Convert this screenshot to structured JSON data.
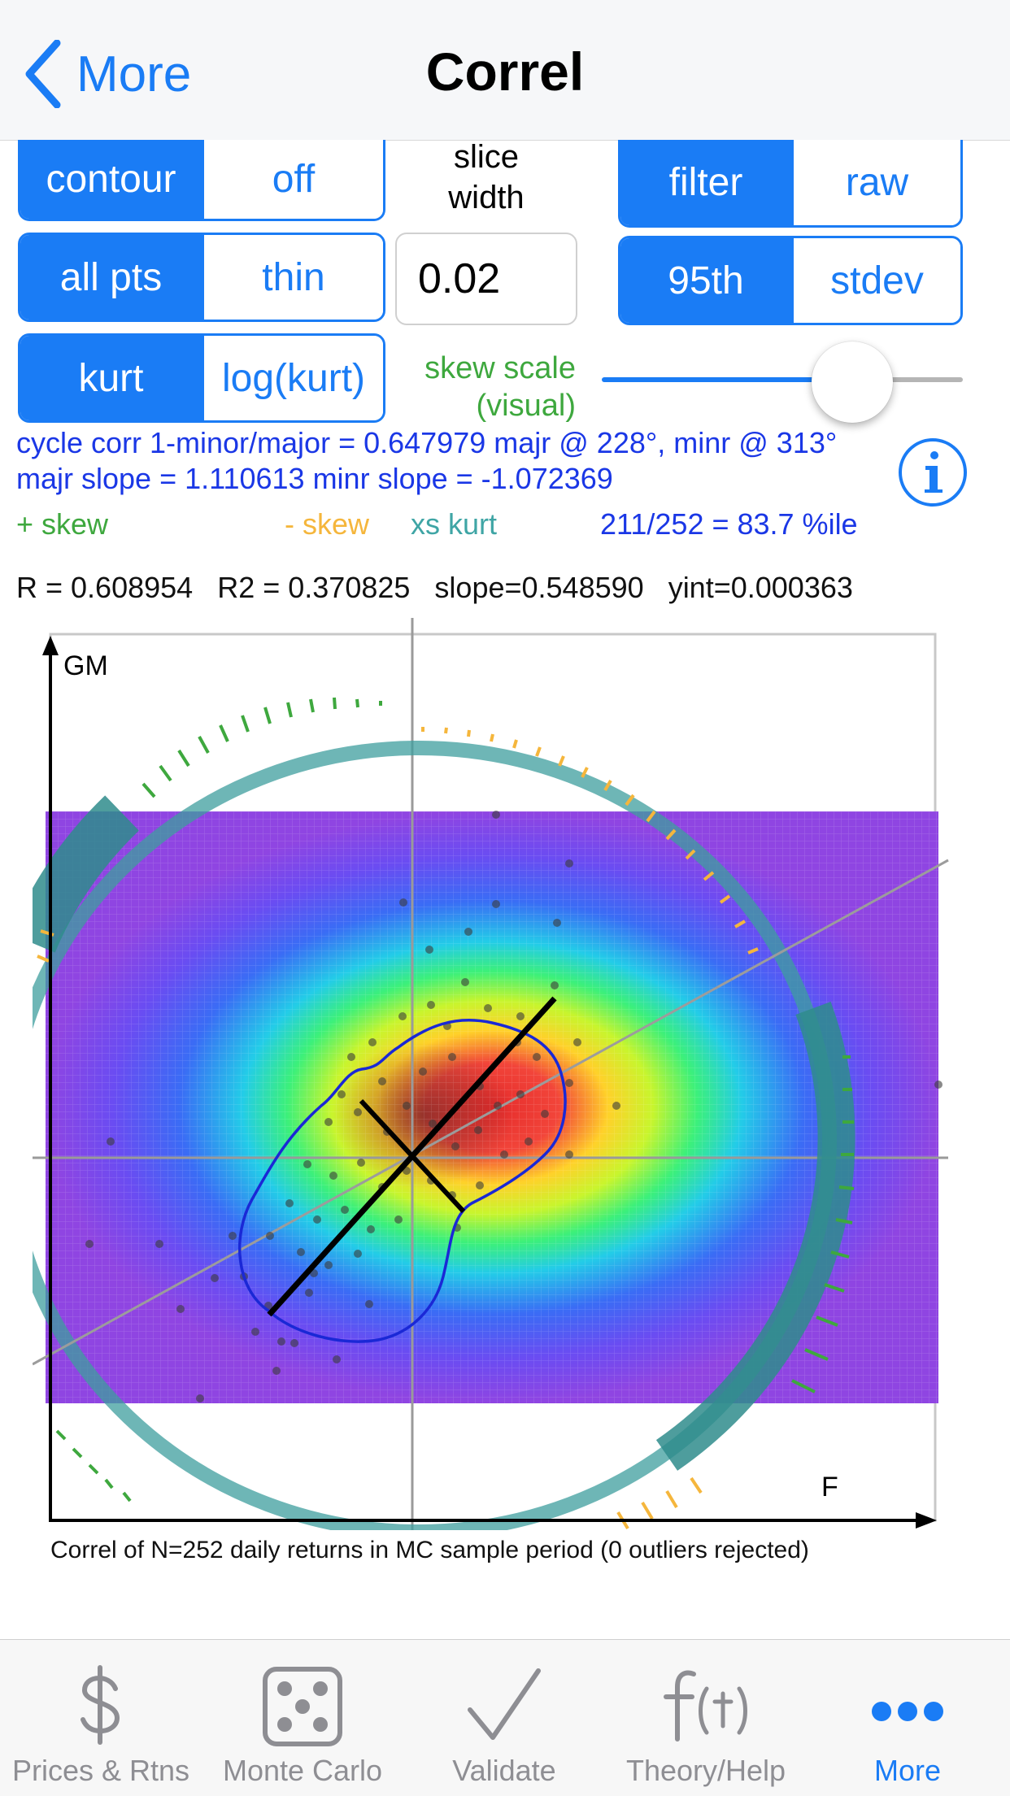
{
  "nav": {
    "back_label": "More",
    "title": "Correl"
  },
  "controls": {
    "contour": {
      "on": "contour",
      "off": "off"
    },
    "slice": {
      "label_line1": "slice",
      "label_line2": "width",
      "value": "0.02"
    },
    "filter": {
      "on": "filter",
      "off": "raw"
    },
    "points": {
      "on": "all pts",
      "off": "thin"
    },
    "pct": {
      "on": "95th",
      "off": "stdev"
    },
    "kurt": {
      "on": "kurt",
      "off": "log(kurt)"
    },
    "skew_scale": {
      "line1": "skew scale",
      "line2": "(visual)",
      "slider_fraction": 0.7
    }
  },
  "info": {
    "line1": "cycle corr 1-minor/major = 0.647979 majr @ 228°, minr @ 313°",
    "line2": "majr slope = 1.110613  minr slope = -1.072369"
  },
  "legend": {
    "plus_skew": "+ skew",
    "minus_skew": "- skew",
    "xs_kurt": "xs kurt",
    "percentile": "211/252 =  83.7 %ile",
    "colors": {
      "plus_skew": "#3ea83e",
      "minus_skew": "#f5b63c",
      "xs_kurt": "#3fa5a5",
      "percentile": "#1a37e6"
    }
  },
  "stats": {
    "r": "R = 0.608954",
    "r2": "R2 = 0.370825",
    "slope": "slope=0.548590",
    "yint": "yint=0.000363"
  },
  "chart_data": {
    "type": "scatter",
    "xlabel": "F",
    "ylabel": "GM",
    "n": 252,
    "r": 0.608954,
    "r2": 0.370825,
    "slope": 0.54859,
    "yint": 0.000363,
    "major_axis_deg": 228,
    "minor_axis_deg": 313,
    "major_slope": 1.110613,
    "minor_slope": -1.072369,
    "grid": false,
    "overlays": [
      "density heatmap",
      "95th percentile contour",
      "principal axes",
      "regression line",
      "skew ring",
      "kurtosis band"
    ]
  },
  "caption": "Correl of N=252 daily returns in MC sample period (0 outliers rejected)",
  "tabs": [
    {
      "label": "Prices & Rtns",
      "icon": "dollar-icon"
    },
    {
      "label": "Monte Carlo",
      "icon": "dice-icon"
    },
    {
      "label": "Validate",
      "icon": "checkmark-icon"
    },
    {
      "label": "Theory/Help",
      "icon": "function-icon"
    },
    {
      "label": "More",
      "icon": "more-icon"
    }
  ],
  "accent": "#1a7cf5"
}
